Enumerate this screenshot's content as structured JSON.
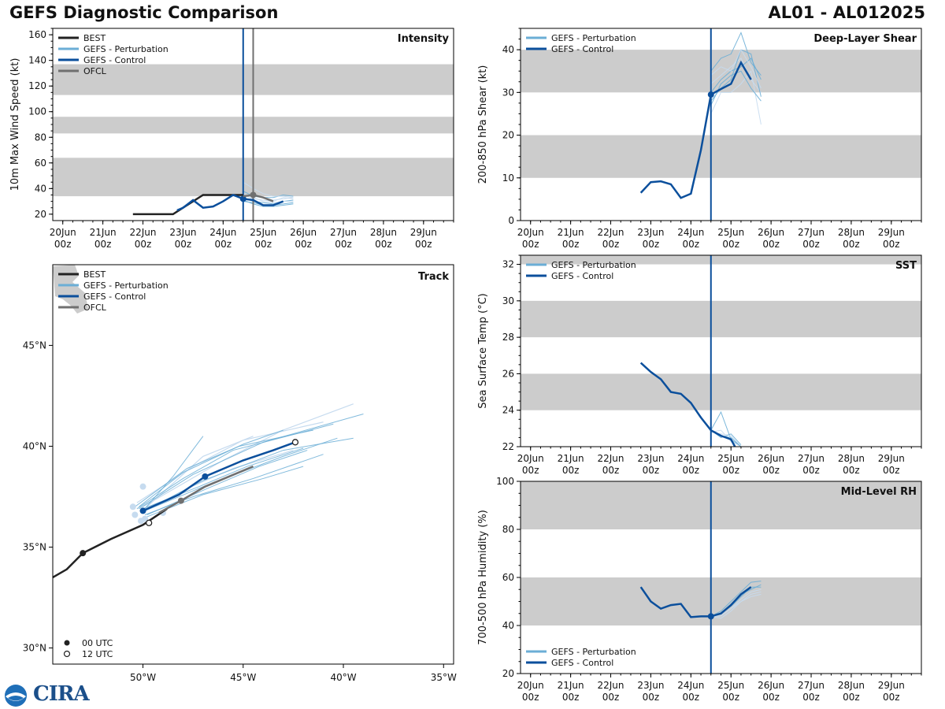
{
  "header": {
    "title": "GEFS Diagnostic Comparison",
    "storm_id": "AL01 - AL012025"
  },
  "logo": {
    "text": "CIRA"
  },
  "colors": {
    "best": "#222222",
    "perturbation": "#6baed6",
    "perturbation_light": "#c6dbef",
    "control": "#0b4f9c",
    "ofcl": "#707070",
    "band": "#cccccc"
  },
  "time_axis": {
    "ticks": [
      {
        "top": "20Jun",
        "bottom": "00z"
      },
      {
        "top": "21Jun",
        "bottom": "00z"
      },
      {
        "top": "22Jun",
        "bottom": "00z"
      },
      {
        "top": "23Jun",
        "bottom": "00z"
      },
      {
        "top": "24Jun",
        "bottom": "00z"
      },
      {
        "top": "25Jun",
        "bottom": "00z"
      },
      {
        "top": "26Jun",
        "bottom": "00z"
      },
      {
        "top": "27Jun",
        "bottom": "00z"
      },
      {
        "top": "28Jun",
        "bottom": "00z"
      },
      {
        "top": "29Jun",
        "bottom": "00z"
      }
    ],
    "xlim_days": [
      -0.25,
      9.75
    ]
  },
  "chart_data": [
    {
      "id": "intensity",
      "type": "line",
      "title": "Intensity",
      "ylabel": "10m Max Wind Speed (kt)",
      "ylim": [
        15,
        165
      ],
      "yticks": [
        20,
        40,
        60,
        80,
        100,
        120,
        140,
        160
      ],
      "bands": [
        [
          34,
          64
        ],
        [
          83,
          96
        ],
        [
          113,
          137
        ]
      ],
      "vlines": [
        {
          "x": 4.5,
          "series": "control"
        },
        {
          "x": 4.75,
          "series": "ofcl"
        }
      ],
      "legend": [
        "BEST",
        "GEFS - Perturbation",
        "GEFS - Control",
        "OFCL"
      ],
      "legend_position": "top-left",
      "series": [
        {
          "name": "BEST",
          "x": [
            1.75,
            2.0,
            2.25,
            2.5,
            2.75,
            3.0,
            3.25,
            3.5,
            3.75,
            4.0,
            4.25,
            4.5
          ],
          "values": [
            20,
            20,
            20,
            20,
            20,
            25,
            30,
            35,
            35,
            35,
            35,
            35
          ]
        },
        {
          "name": "GEFS - Control",
          "x": [
            2.85,
            3.0,
            3.25,
            3.5,
            3.75,
            4.0,
            4.25,
            4.5,
            4.75,
            5.0,
            5.25,
            5.5
          ],
          "values": [
            23,
            25,
            31,
            25,
            26,
            30,
            35,
            32,
            31,
            27,
            27,
            30
          ],
          "marker": {
            "x": 4.5,
            "y": 32
          }
        },
        {
          "name": "OFCL",
          "x": [
            4.5,
            4.75,
            5.0,
            5.25
          ],
          "values": [
            34,
            35,
            33,
            30
          ],
          "marker": {
            "x": 4.75,
            "y": 35
          }
        },
        {
          "name": "GEFS - Perturbation",
          "x": [
            4.5,
            4.75,
            5.0,
            5.25,
            5.5,
            5.75
          ],
          "ensemble": [
            [
              33,
              30,
              29,
              28,
              30,
              31
            ],
            [
              35,
              32,
              31,
              30,
              33,
              32
            ],
            [
              30,
              29,
              27,
              27,
              28,
              29
            ],
            [
              34,
              35,
              33,
              31,
              32,
              33
            ],
            [
              38,
              34,
              33,
              33,
              35,
              34
            ],
            [
              45,
              40,
              36,
              34,
              34,
              33
            ],
            [
              31,
              28,
              26,
              26,
              27,
              28
            ],
            [
              36,
              33,
              30,
              29,
              30,
              30
            ]
          ]
        }
      ]
    },
    {
      "id": "shear",
      "type": "line",
      "title": "Deep-Layer Shear",
      "ylabel": "200-850 hPa Shear (kt)",
      "ylim": [
        0,
        45
      ],
      "yticks": [
        0,
        10,
        20,
        30,
        40
      ],
      "bands": [
        [
          10,
          20
        ],
        [
          30,
          40
        ]
      ],
      "vlines": [
        {
          "x": 4.5,
          "series": "control"
        }
      ],
      "legend": [
        "GEFS - Perturbation",
        "GEFS - Control"
      ],
      "legend_position": "top-left",
      "series": [
        {
          "name": "GEFS - Control",
          "x": [
            2.75,
            3.0,
            3.25,
            3.5,
            3.75,
            4.0,
            4.25,
            4.5,
            4.75,
            5.0,
            5.25,
            5.5
          ],
          "values": [
            6.5,
            9.0,
            9.2,
            8.5,
            5.3,
            6.3,
            16.5,
            29.5,
            30.8,
            32.0,
            37.0,
            33.0
          ],
          "marker": {
            "x": 4.5,
            "y": 29.5
          }
        },
        {
          "name": "GEFS - Perturbation",
          "x": [
            4.5,
            4.75,
            5.0,
            5.25,
            5.5,
            5.75
          ],
          "ensemble": [
            [
              35,
              38,
              39,
              44,
              37,
              34
            ],
            [
              32,
              34,
              36,
              38,
              33,
              30
            ],
            [
              28,
              31,
              33,
              40,
              39,
              29
            ],
            [
              25,
              30,
              30,
              32,
              35,
              22.5
            ],
            [
              30,
              33,
              35,
              36,
              38,
              33
            ],
            [
              34,
              36,
              35,
              40,
              36,
              31
            ],
            [
              27,
              32,
              34,
              35,
              31,
              28
            ]
          ]
        }
      ]
    },
    {
      "id": "track",
      "type": "line",
      "title": "Track",
      "xlim": [
        -54.5,
        -34.5
      ],
      "ylim": [
        29.2,
        49
      ],
      "xticks": [
        {
          "value": -50,
          "label": "50°W"
        },
        {
          "value": -45,
          "label": "45°W"
        },
        {
          "value": -40,
          "label": "40°W"
        },
        {
          "value": -35,
          "label": "35°W"
        }
      ],
      "yticks": [
        {
          "value": 30,
          "label": "30°N"
        },
        {
          "value": 35,
          "label": "35°N"
        },
        {
          "value": 40,
          "label": "40°N"
        },
        {
          "value": 45,
          "label": "45°N"
        }
      ],
      "legend": [
        "BEST",
        "GEFS - Perturbation",
        "GEFS - Control",
        "OFCL"
      ],
      "marker_legend": [
        "00 UTC",
        "12 UTC"
      ],
      "series": [
        {
          "name": "BEST",
          "lon": [
            -54.5,
            -53.8,
            -53.0,
            -51.6,
            -50.0,
            -49.4,
            -48.8
          ],
          "lat": [
            33.5,
            33.9,
            34.7,
            35.4,
            36.1,
            36.5,
            36.9
          ],
          "markers": [
            {
              "lon": -53.0,
              "lat": 34.7,
              "hour": "00"
            },
            {
              "lon": -49.7,
              "lat": 36.2,
              "hour": "12"
            }
          ]
        },
        {
          "name": "GEFS - Control",
          "lon": [
            -50.0,
            -48.2,
            -46.9,
            -45.0,
            -43.5,
            -42.4
          ],
          "lat": [
            36.8,
            37.6,
            38.5,
            39.3,
            39.8,
            40.2
          ],
          "markers": [
            {
              "lon": -50.0,
              "lat": 36.8,
              "hour": "00"
            },
            {
              "lon": -46.9,
              "lat": 38.5,
              "hour": "00"
            },
            {
              "lon": -42.4,
              "lat": 40.2,
              "hour": "12"
            }
          ]
        },
        {
          "name": "OFCL",
          "lon": [
            -49.2,
            -48.1,
            -46.9,
            -44.5
          ],
          "lat": [
            36.7,
            37.3,
            38.0,
            39.0
          ],
          "markers": [
            {
              "lon": -48.1,
              "lat": 37.3,
              "hour": "00"
            }
          ]
        },
        {
          "name": "GEFS - Perturbation",
          "ensemble": [
            {
              "lon": [
                -50.2,
                -47.5,
                -44.0,
                -39.0
              ],
              "lat": [
                36.9,
                38.6,
                40.2,
                41.6
              ]
            },
            {
              "lon": [
                -50.1,
                -47.0,
                -43.0,
                -39.5
              ],
              "lat": [
                36.7,
                38.3,
                39.8,
                40.4
              ]
            },
            {
              "lon": [
                -49.9,
                -47.5,
                -44.5,
                -41.0
              ],
              "lat": [
                36.6,
                37.5,
                38.4,
                39.6
              ]
            },
            {
              "lon": [
                -50.3,
                -48.0,
                -45.5,
                -40.5
              ],
              "lat": [
                36.9,
                38.4,
                39.8,
                41.1
              ]
            },
            {
              "lon": [
                -50.0,
                -48.5,
                -47.0
              ],
              "lat": [
                36.8,
                38.5,
                40.5
              ]
            },
            {
              "lon": [
                -49.8,
                -47.0,
                -44.0,
                -42.0
              ],
              "lat": [
                36.5,
                37.6,
                38.4,
                39.0
              ]
            },
            {
              "lon": [
                -50.4,
                -47.8,
                -45.2,
                -41.5
              ],
              "lat": [
                37.0,
                38.9,
                40.0,
                40.8
              ]
            },
            {
              "lon": [
                -49.9,
                -46.5,
                -43.0,
                -40.3
              ],
              "lat": [
                36.8,
                38.2,
                39.5,
                40.4
              ]
            },
            {
              "lon": [
                -50.0,
                -47.2,
                -44.8,
                -42.0
              ],
              "lat": [
                36.9,
                38.0,
                39.0,
                39.9
              ]
            },
            {
              "lon": [
                -50.2,
                -48.0,
                -45.0,
                -43.0
              ],
              "lat": [
                37.0,
                38.7,
                40.1,
                40.8
              ]
            },
            {
              "lon": [
                -49.8,
                -46.8,
                -44.2,
                -41.8
              ],
              "lat": [
                36.6,
                37.9,
                39.0,
                39.8
              ]
            }
          ],
          "light_ensemble": [
            {
              "lon": [
                -50.0,
                -46.0,
                -43.0,
                -39.5
              ],
              "lat": [
                37.0,
                39.3,
                40.8,
                42.1
              ]
            },
            {
              "lon": [
                -49.8,
                -47.0,
                -44.5
              ],
              "lat": [
                37.0,
                39.5,
                40.5
              ]
            },
            {
              "lon": [
                -50.1,
                -47.8,
                -45.5,
                -42.5
              ],
              "lat": [
                36.7,
                37.9,
                38.9,
                39.8
              ]
            },
            {
              "lon": [
                -50.3,
                -47.5,
                -45.0,
                -41.0
              ],
              "lat": [
                37.2,
                39.0,
                40.3,
                41.2
              ]
            }
          ],
          "start_dots": [
            {
              "lon": -50.5,
              "lat": 37.0
            },
            {
              "lon": -49.9,
              "lat": 36.4
            },
            {
              "lon": -49.0,
              "lat": 36.7
            },
            {
              "lon": -50.0,
              "lat": 38.0
            },
            {
              "lon": -50.4,
              "lat": 36.6
            },
            {
              "lon": -50.1,
              "lat": 36.3
            }
          ]
        }
      ]
    },
    {
      "id": "sst",
      "type": "line",
      "title": "SST",
      "ylabel": "Sea Surface Temp (°C)",
      "ylim": [
        22,
        32.5
      ],
      "yticks": [
        22,
        24,
        26,
        28,
        30,
        32
      ],
      "bands": [
        [
          24,
          26
        ],
        [
          28,
          30
        ],
        [
          32,
          34
        ]
      ],
      "vlines": [
        {
          "x": 4.5,
          "series": "control"
        }
      ],
      "legend": [
        "GEFS - Perturbation",
        "GEFS - Control"
      ],
      "legend_position": "top-left",
      "series": [
        {
          "name": "GEFS - Control",
          "x": [
            2.75,
            3.0,
            3.25,
            3.5,
            3.75,
            4.0,
            4.25,
            4.5,
            4.75,
            5.0,
            5.1
          ],
          "values": [
            26.6,
            26.1,
            25.7,
            25.0,
            24.9,
            24.4,
            23.6,
            22.9,
            22.6,
            22.4,
            22.0
          ]
        },
        {
          "name": "GEFS - Perturbation",
          "x": [
            4.5,
            4.75,
            5.0,
            5.25
          ],
          "ensemble": [
            [
              22.9,
              23.9,
              22.4,
              22.0
            ],
            [
              22.8,
              22.7,
              22.6,
              22.0
            ],
            [
              22.9,
              22.5,
              22.7,
              22.1
            ],
            [
              22.8,
              22.9,
              22.3,
              22.0
            ],
            [
              22.9,
              22.6,
              22.5,
              22.0
            ]
          ]
        }
      ]
    },
    {
      "id": "rh",
      "type": "line",
      "title": "Mid-Level RH",
      "ylabel": "700-500 hPa Humidity (%)",
      "ylim": [
        20,
        100
      ],
      "yticks": [
        20,
        40,
        60,
        80,
        100
      ],
      "bands": [
        [
          40,
          60
        ],
        [
          80,
          100
        ]
      ],
      "vlines": [
        {
          "x": 4.5,
          "series": "control"
        }
      ],
      "legend": [
        "GEFS - Perturbation",
        "GEFS - Control"
      ],
      "legend_position": "bottom-left",
      "series": [
        {
          "name": "GEFS - Control",
          "x": [
            2.75,
            3.0,
            3.25,
            3.5,
            3.75,
            4.0,
            4.25,
            4.5,
            4.75,
            5.0,
            5.25,
            5.5
          ],
          "values": [
            56,
            50,
            47,
            48.5,
            49,
            43.5,
            43.8,
            43.8,
            45,
            48.5,
            53,
            56
          ],
          "marker": {
            "x": 4.5,
            "y": 43.8
          }
        },
        {
          "name": "GEFS - Perturbation",
          "x": [
            4.5,
            4.75,
            5.0,
            5.25,
            5.5,
            5.75
          ],
          "ensemble": [
            [
              43.8,
              46,
              50,
              54,
              58,
              58.5
            ],
            [
              43.8,
              44,
              47,
              51,
              54,
              55
            ],
            [
              43.8,
              45,
              49,
              53,
              55,
              57
            ],
            [
              43.8,
              43,
              46,
              50,
              52,
              53
            ],
            [
              43.8,
              45,
              48,
              52,
              56,
              56
            ],
            [
              43.8,
              44,
              47,
              50,
              53,
              54
            ]
          ]
        }
      ]
    }
  ]
}
